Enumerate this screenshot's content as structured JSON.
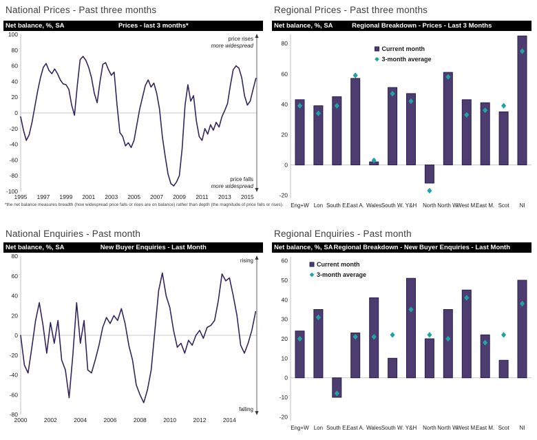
{
  "colors": {
    "bar_fill": "#4C3C6F",
    "bar_border": "#2A1F50",
    "line_series": "#32255C",
    "diamond_teal": "#21A3A3",
    "header_bg": "#000000",
    "header_fg": "#ffffff",
    "axis_gray": "#c0c0c0",
    "zero_line": "#c9c9c9"
  },
  "chart_data": [
    {
      "id": "national-prices",
      "type": "line",
      "panel_title": "National Prices - Past three months",
      "axis_label": "Net balance, %, SA",
      "chart_title": "Prices - last 3 months*",
      "ylim": [
        -100,
        100
      ],
      "yticks": [
        100,
        80,
        60,
        40,
        20,
        0,
        -20,
        -40,
        -60,
        -80,
        -100
      ],
      "x_domain": [
        1995,
        2015.83
      ],
      "x_ticks": [
        1995,
        1997,
        1999,
        2001,
        2003,
        2005,
        2007,
        2009,
        2011,
        2013,
        2015
      ],
      "series_start": 1995.0,
      "series_step": 0.25,
      "values": [
        -5,
        -22,
        -35,
        -28,
        -12,
        8,
        28,
        45,
        58,
        63,
        54,
        50,
        56,
        50,
        42,
        37,
        36,
        30,
        10,
        -3,
        35,
        68,
        72,
        67,
        58,
        45,
        25,
        13,
        40,
        62,
        64,
        55,
        48,
        52,
        10,
        -25,
        -30,
        -42,
        -38,
        -44,
        -35,
        -15,
        5,
        20,
        35,
        42,
        33,
        38,
        25,
        5,
        -30,
        -55,
        -78,
        -90,
        -93,
        -88,
        -80,
        -45,
        10,
        36,
        15,
        22,
        -10,
        -30,
        -35,
        -20,
        -27,
        -15,
        -22,
        -12,
        -18,
        -5,
        3,
        12,
        35,
        55,
        60,
        57,
        45,
        22,
        10,
        15,
        30,
        44
      ],
      "annotation_top": [
        "price rises",
        "more widespread"
      ],
      "annotation_bottom": [
        "price falls",
        "more widespread"
      ],
      "footnote": "*the net balance measures breadth (how widespread price falls or rises are on balance) rather than depth (the magnitude of price falls or rises).",
      "legend_position": "none",
      "grid": "zero-line-only"
    },
    {
      "id": "regional-prices",
      "type": "bar",
      "panel_title": "Regional Prices - Past three months",
      "axis_label": "Net balance, %, SA",
      "chart_title": "Regional Breakdown - Prices - Last 3 Months",
      "ylim": [
        -22,
        86
      ],
      "yticks": [
        80,
        60,
        40,
        20,
        0,
        -20
      ],
      "categories": [
        "Eng+W",
        "Lon",
        "South E.",
        "East A.",
        "Wales",
        "South W.",
        "Y&H",
        "North",
        "North W.",
        "West M.",
        "East M.",
        "Scot",
        "NI"
      ],
      "series": [
        {
          "name": "Current month",
          "values": [
            43,
            39,
            45,
            57,
            2,
            51,
            47,
            -12,
            61,
            43,
            41,
            35,
            85
          ]
        },
        {
          "name": "3-month average",
          "values": [
            39,
            34,
            39,
            59,
            3,
            47,
            42,
            -17,
            58,
            33,
            36,
            39,
            75
          ]
        }
      ],
      "legend_position": "center-top",
      "grid": "zero-line-only"
    },
    {
      "id": "national-enquiries",
      "type": "line",
      "panel_title": "National Enquiries - Past month",
      "axis_label": "Net balance, %, SA",
      "chart_title": "New Buyer Enquiries - Last Month",
      "ylim": [
        -80,
        80
      ],
      "yticks": [
        80,
        60,
        40,
        20,
        0,
        -20,
        -40,
        -60,
        -80
      ],
      "x_domain": [
        2000,
        2015.83
      ],
      "x_ticks": [
        2000,
        2002,
        2004,
        2006,
        2008,
        2010,
        2012,
        2014
      ],
      "series_start": 2000.0,
      "series_step": 0.25,
      "values": [
        0,
        -30,
        -38,
        -12,
        15,
        33,
        10,
        -18,
        13,
        -8,
        15,
        -25,
        -35,
        -63,
        -20,
        33,
        -8,
        15,
        -35,
        -38,
        -25,
        -10,
        8,
        18,
        12,
        20,
        15,
        27,
        12,
        -10,
        -25,
        -50,
        -60,
        -68,
        -55,
        -35,
        5,
        45,
        63,
        40,
        28,
        5,
        -12,
        -8,
        -18,
        -5,
        -10,
        0,
        5,
        -3,
        8,
        10,
        15,
        35,
        62,
        55,
        58,
        40,
        20,
        -10,
        -18,
        -8,
        5,
        24
      ],
      "annotation_top": [
        "rising"
      ],
      "annotation_bottom": [
        "falling"
      ],
      "footnote": "",
      "legend_position": "none",
      "grid": "zero-line-only"
    },
    {
      "id": "regional-enquiries",
      "type": "bar",
      "panel_title": "Regional Enquiries - Past month",
      "axis_label": "Net balance, %, SA",
      "chart_title": "Regional Breakdown - New Buyer Enquiries - Last Month",
      "ylim": [
        -22,
        62
      ],
      "yticks": [
        60,
        50,
        40,
        30,
        20,
        10,
        0,
        -10,
        -20
      ],
      "categories": [
        "Eng+W",
        "Lon",
        "South E.",
        "East A.",
        "Wales",
        "South W.",
        "Y&H",
        "North",
        "North W.",
        "West M.",
        "East M.",
        "Scot",
        "NI"
      ],
      "series": [
        {
          "name": "Current month",
          "values": [
            24,
            35,
            -10,
            23,
            41,
            10,
            51,
            20,
            35,
            45,
            22,
            9,
            50
          ]
        },
        {
          "name": "3-month average",
          "values": [
            20,
            31,
            -8,
            21,
            21,
            22,
            35,
            22,
            20,
            41,
            18,
            22,
            38
          ]
        }
      ],
      "legend_position": "left-top",
      "grid": "zero-line-only"
    }
  ]
}
